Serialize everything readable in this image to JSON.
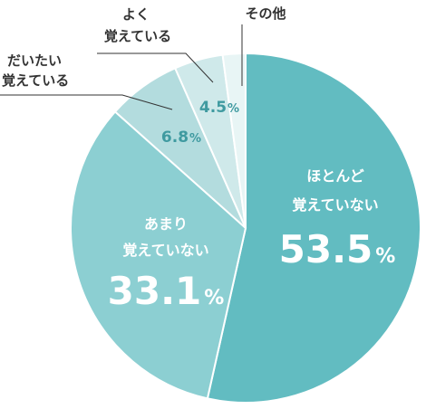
{
  "chart_data": {
    "type": "pie",
    "start_angle_deg": 0,
    "direction": "clockwise",
    "slices": [
      {
        "label_lines": [
          "ほとんど",
          "覚えていない"
        ],
        "value": 53.5,
        "value_text": "53.5",
        "unit": "%",
        "color": "#62bcc1"
      },
      {
        "label_lines": [
          "あまり",
          "覚えていない"
        ],
        "value": 33.1,
        "value_text": "33.1",
        "unit": "%",
        "color": "#8ccfd2"
      },
      {
        "label_lines": [
          "だいたい",
          "覚えている"
        ],
        "value": 6.8,
        "value_text": "6.8",
        "unit": "%",
        "color": "#b3dcde"
      },
      {
        "label_lines": [
          "よく",
          "覚えている"
        ],
        "value": 4.5,
        "value_text": "4.5",
        "unit": "%",
        "color": "#cfe9ea"
      },
      {
        "label_lines": [
          "その他"
        ],
        "value": 2.1,
        "value_text": "",
        "unit": "",
        "color": "#e8f5f5"
      }
    ]
  }
}
